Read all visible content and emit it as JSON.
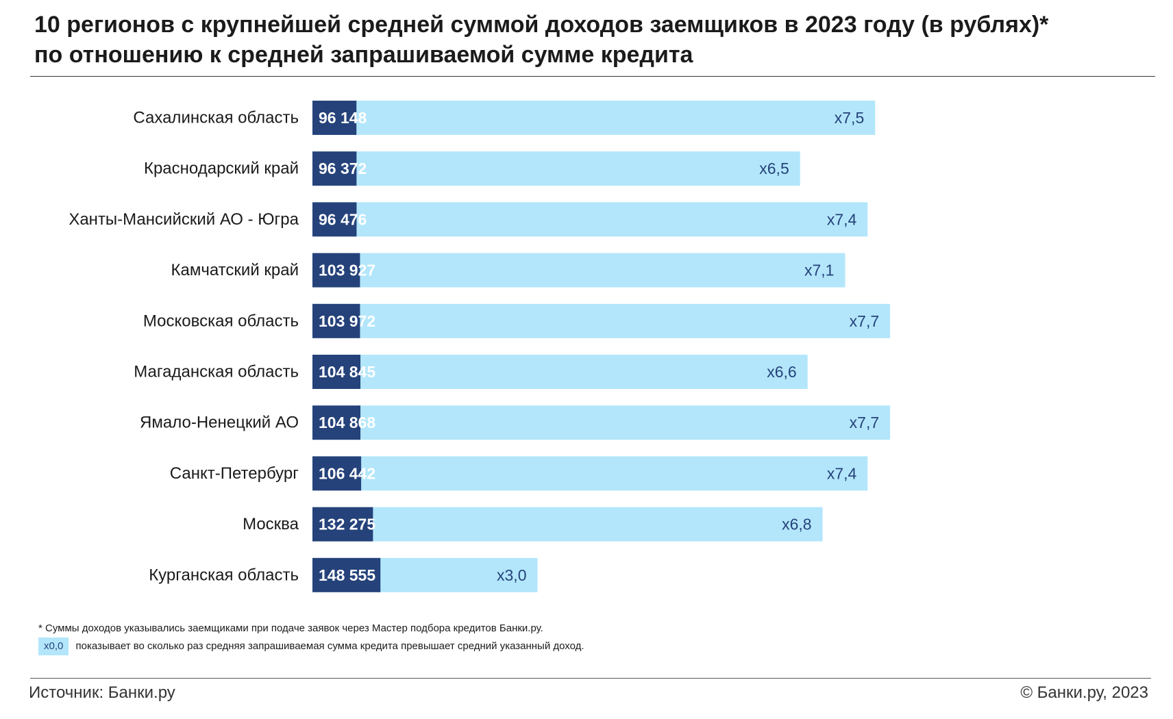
{
  "title_line1": "10 регионов с крупнейшей средней суммой доходов заемщиков в 2023 году (в рублях)*",
  "title_line2": "по отношению к средней запрашиваемой сумме кредита",
  "chart_data": {
    "type": "bar",
    "orientation": "horizontal",
    "categories": [
      "Сахалинская область",
      "Краснодарский край",
      "Ханты-Мансийский АО - Югра",
      "Камчатский край",
      "Московская область",
      "Магаданская область",
      "Ямало-Ненецкий АО",
      "Санкт-Петербург",
      "Москва",
      "Курганская область"
    ],
    "series": [
      {
        "values": [
          96148,
          96372,
          96476,
          103927,
          103972,
          104845,
          104868,
          106442,
          132275,
          148555
        ],
        "labels": [
          "96 148",
          "96 372",
          "96 476",
          "103 927",
          "103 972",
          "104 845",
          "104 868",
          "106 442",
          "132 275",
          "148 555"
        ],
        "color": "#25427a"
      },
      {
        "values": [
          7.5,
          6.5,
          7.4,
          7.1,
          7.7,
          6.6,
          7.7,
          7.4,
          6.8,
          3.0
        ],
        "labels": [
          "x7,5",
          "x6,5",
          "x7,4",
          "x7,1",
          "x7,7",
          "x6,6",
          "x7,7",
          "x7,4",
          "x6,8",
          "x3,0"
        ],
        "color": "#b3e6fb"
      }
    ],
    "stacked": true,
    "grid": false,
    "legend": "bottom-left"
  },
  "notes": {
    "footnote": "* Суммы доходов указывались заемщиками при подаче заявок через Мастер подбора кредитов Банки.ру.",
    "legend_swatch": "x0,0",
    "legend_text": "показывает во сколько раз средняя запрашиваемая сумма кредита превышает средний указанный доход."
  },
  "footer": {
    "source": "Источник: Банки.ру",
    "copyright": "© Банки.ру, 2023"
  }
}
